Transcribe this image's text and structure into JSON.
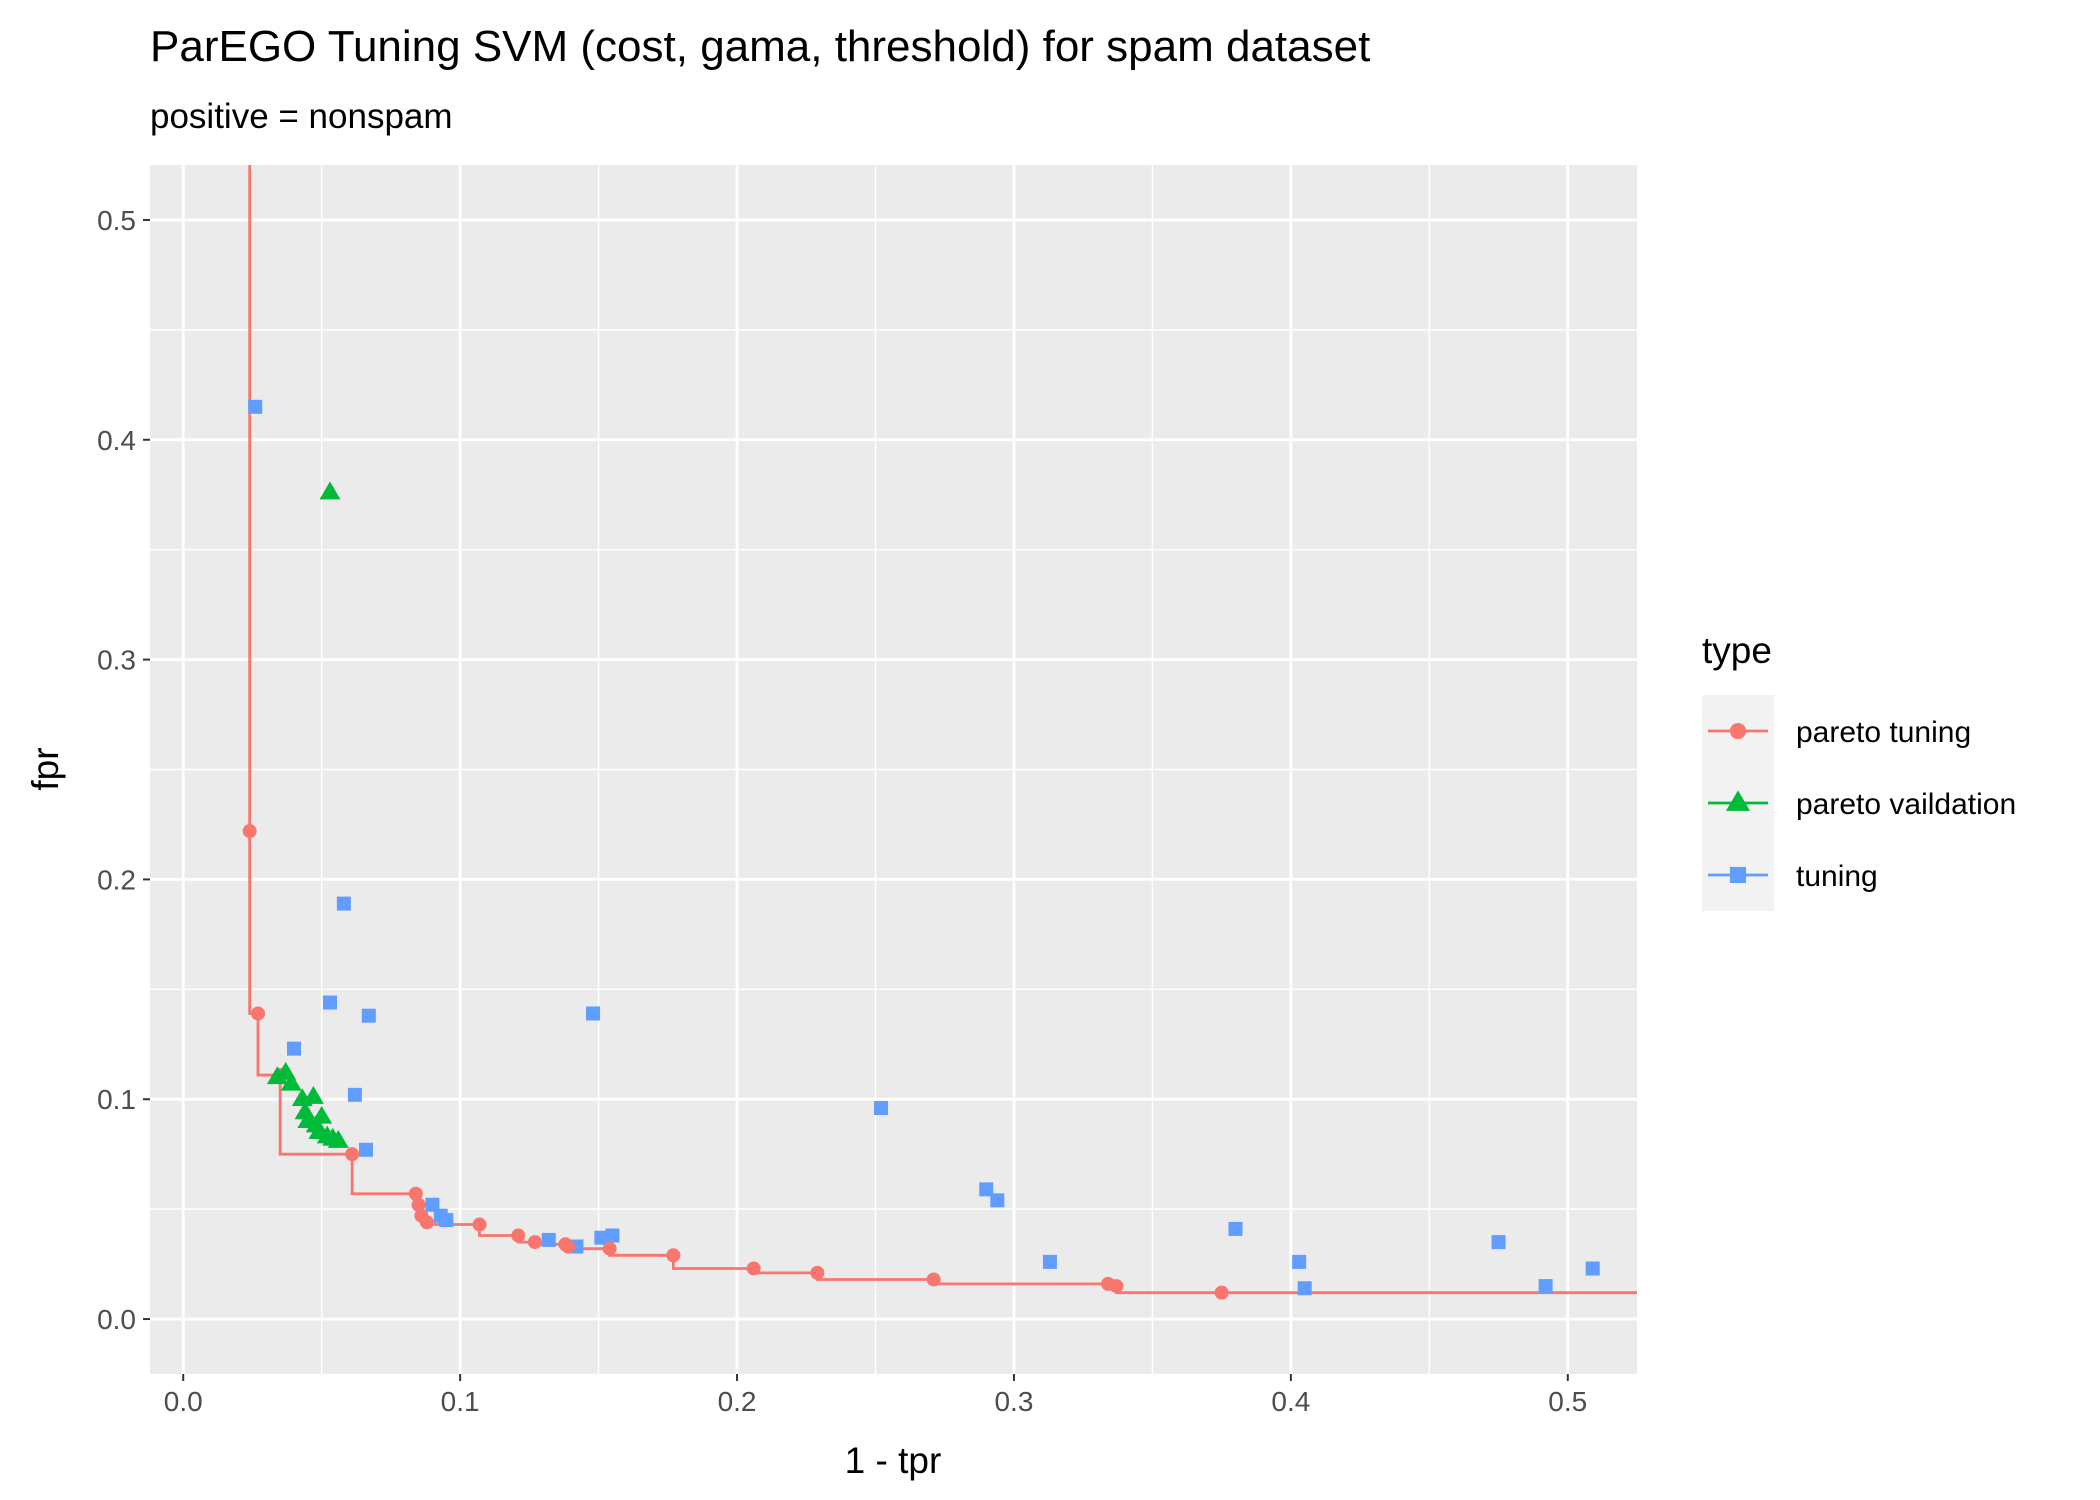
{
  "chart_data": {
    "type": "scatter",
    "title": "ParEGO Tuning SVM (cost, gama, threshold) for spam dataset",
    "subtitle": "positive = nonspam",
    "xlabel": "1 - tpr",
    "ylabel": "fpr",
    "xlim": [
      -0.012,
      0.525
    ],
    "ylim": [
      -0.025,
      0.525
    ],
    "x_ticks": [
      "0.0",
      "0.1",
      "0.2",
      "0.3",
      "0.4",
      "0.5"
    ],
    "y_ticks": [
      "0.0",
      "0.1",
      "0.2",
      "0.3",
      "0.4",
      "0.5"
    ],
    "grid": true,
    "legend": {
      "title": "type",
      "position": "right",
      "entries": [
        "pareto tuning",
        "pareto vaildation",
        "tuning"
      ]
    },
    "series": [
      {
        "name": "pareto tuning",
        "color": "#F8766D",
        "marker": "circle",
        "line": "step",
        "step_start": [
          0.024,
          0.525
        ],
        "step_end": [
          0.525,
          0.012
        ],
        "points": [
          [
            0.024,
            0.222
          ],
          [
            0.027,
            0.139
          ],
          [
            0.035,
            0.111
          ],
          [
            0.061,
            0.075
          ],
          [
            0.084,
            0.057
          ],
          [
            0.085,
            0.052
          ],
          [
            0.086,
            0.047
          ],
          [
            0.088,
            0.044
          ],
          [
            0.107,
            0.043
          ],
          [
            0.121,
            0.038
          ],
          [
            0.127,
            0.035
          ],
          [
            0.138,
            0.034
          ],
          [
            0.139,
            0.033
          ],
          [
            0.154,
            0.032
          ],
          [
            0.177,
            0.029
          ],
          [
            0.206,
            0.023
          ],
          [
            0.229,
            0.021
          ],
          [
            0.271,
            0.018
          ],
          [
            0.334,
            0.016
          ],
          [
            0.337,
            0.015
          ],
          [
            0.375,
            0.012
          ]
        ]
      },
      {
        "name": "pareto vaildation",
        "color": "#00BA38",
        "marker": "triangle",
        "points": [
          [
            0.053,
            0.376
          ],
          [
            0.034,
            0.11
          ],
          [
            0.037,
            0.112
          ],
          [
            0.039,
            0.107
          ],
          [
            0.043,
            0.1
          ],
          [
            0.047,
            0.101
          ],
          [
            0.044,
            0.094
          ],
          [
            0.045,
            0.09
          ],
          [
            0.048,
            0.088
          ],
          [
            0.049,
            0.085
          ],
          [
            0.05,
            0.092
          ],
          [
            0.052,
            0.083
          ],
          [
            0.054,
            0.082
          ],
          [
            0.056,
            0.081
          ]
        ]
      },
      {
        "name": "tuning",
        "color": "#619CFF",
        "marker": "square",
        "points": [
          [
            0.026,
            0.415
          ],
          [
            0.058,
            0.189
          ],
          [
            0.053,
            0.144
          ],
          [
            0.067,
            0.138
          ],
          [
            0.04,
            0.123
          ],
          [
            0.062,
            0.102
          ],
          [
            0.066,
            0.077
          ],
          [
            0.148,
            0.139
          ],
          [
            0.252,
            0.096
          ],
          [
            0.09,
            0.052
          ],
          [
            0.093,
            0.047
          ],
          [
            0.095,
            0.045
          ],
          [
            0.132,
            0.036
          ],
          [
            0.142,
            0.033
          ],
          [
            0.151,
            0.037
          ],
          [
            0.155,
            0.038
          ],
          [
            0.29,
            0.059
          ],
          [
            0.294,
            0.054
          ],
          [
            0.313,
            0.026
          ],
          [
            0.38,
            0.041
          ],
          [
            0.403,
            0.026
          ],
          [
            0.405,
            0.014
          ],
          [
            0.475,
            0.035
          ],
          [
            0.492,
            0.015
          ],
          [
            0.509,
            0.023
          ]
        ]
      }
    ]
  }
}
